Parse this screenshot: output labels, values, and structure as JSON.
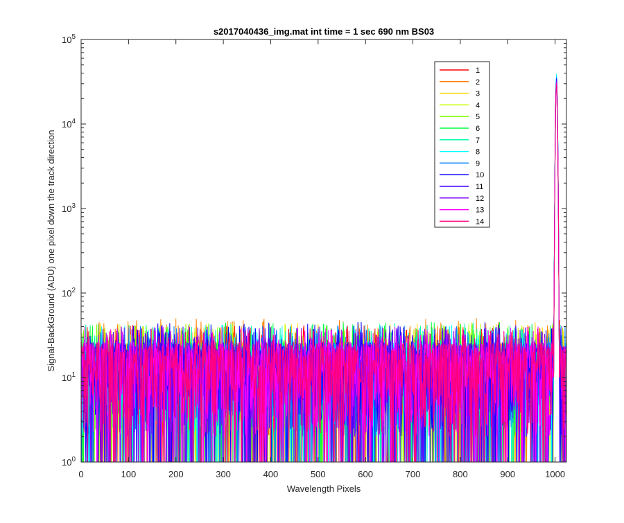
{
  "chart_data": {
    "type": "line",
    "title": "s2017040436_img.mat int time = 1 sec  690 nm BS03",
    "xlabel": "Wavelength Pixels",
    "ylabel": "Signal-BackGround (ADU) one pixel down the track direction",
    "xlim": [
      0,
      1024
    ],
    "ylim": [
      1,
      100000
    ],
    "yscale": "log",
    "grid": false,
    "legend_location": "top-right",
    "x_ticks": [
      "0",
      "100",
      "200",
      "300",
      "400",
      "500",
      "600",
      "700",
      "800",
      "900",
      "1000"
    ],
    "y_tick_base": "10",
    "y_tick_exponents": [
      "0",
      "1",
      "2",
      "3",
      "4",
      "5"
    ],
    "noise_floor_description_values": {
      "typical_min": 1,
      "typical_max": 45
    },
    "series": [
      {
        "name": "1",
        "color": "#ff0000",
        "noise_median": 10,
        "noise_max": 42,
        "peak_x": 1003,
        "peak_y": 30000
      },
      {
        "name": "2",
        "color": "#ff7f00",
        "noise_median": 10,
        "noise_max": 50,
        "peak_x": 1003,
        "peak_y": 31000
      },
      {
        "name": "3",
        "color": "#ffd700",
        "noise_median": 10,
        "noise_max": 45,
        "peak_x": 1003,
        "peak_y": 32000
      },
      {
        "name": "4",
        "color": "#c8ff00",
        "noise_median": 10,
        "noise_max": 44,
        "peak_x": 1003,
        "peak_y": 33000
      },
      {
        "name": "5",
        "color": "#7fff00",
        "noise_median": 10,
        "noise_max": 43,
        "peak_x": 1003,
        "peak_y": 34000
      },
      {
        "name": "6",
        "color": "#00ff3f",
        "noise_median": 10,
        "noise_max": 46,
        "peak_x": 1003,
        "peak_y": 35000
      },
      {
        "name": "7",
        "color": "#00ffaa",
        "noise_median": 10,
        "noise_max": 44,
        "peak_x": 1003,
        "peak_y": 36000
      },
      {
        "name": "8",
        "color": "#00ffff",
        "noise_median": 10,
        "noise_max": 42,
        "peak_x": 1003,
        "peak_y": 39000
      },
      {
        "name": "9",
        "color": "#0080ff",
        "noise_median": 10,
        "noise_max": 41,
        "peak_x": 1003,
        "peak_y": 36000
      },
      {
        "name": "10",
        "color": "#0000ff",
        "noise_median": 10,
        "noise_max": 45,
        "peak_x": 1003,
        "peak_y": 34000
      },
      {
        "name": "11",
        "color": "#4000ff",
        "noise_median": 10,
        "noise_max": 42,
        "peak_x": 1003,
        "peak_y": 33000
      },
      {
        "name": "12",
        "color": "#8000ff",
        "noise_median": 10,
        "noise_max": 40,
        "peak_x": 1003,
        "peak_y": 32000
      },
      {
        "name": "13",
        "color": "#ff00ff",
        "noise_median": 10,
        "noise_max": 40,
        "peak_x": 1003,
        "peak_y": 31000
      },
      {
        "name": "14",
        "color": "#ff0080",
        "noise_median": 10,
        "noise_max": 38,
        "peak_x": 1003,
        "peak_y": 30000
      }
    ]
  }
}
